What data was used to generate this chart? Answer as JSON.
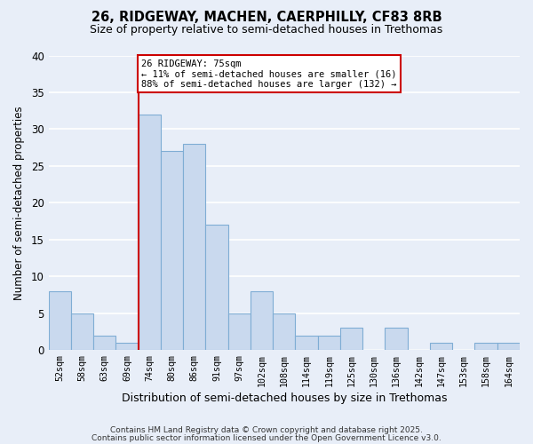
{
  "title": "26, RIDGEWAY, MACHEN, CAERPHILLY, CF83 8RB",
  "subtitle": "Size of property relative to semi-detached houses in Trethomas",
  "xlabel": "Distribution of semi-detached houses by size in Trethomas",
  "ylabel": "Number of semi-detached properties",
  "bins": [
    "52sqm",
    "58sqm",
    "63sqm",
    "69sqm",
    "74sqm",
    "80sqm",
    "86sqm",
    "91sqm",
    "97sqm",
    "102sqm",
    "108sqm",
    "114sqm",
    "119sqm",
    "125sqm",
    "130sqm",
    "136sqm",
    "142sqm",
    "147sqm",
    "153sqm",
    "158sqm",
    "164sqm"
  ],
  "values": [
    8,
    5,
    2,
    1,
    32,
    27,
    28,
    17,
    5,
    8,
    5,
    2,
    2,
    3,
    0,
    3,
    0,
    1,
    0,
    1,
    1
  ],
  "bar_color": "#c9d9ee",
  "bar_edge_color": "#7fadd4",
  "highlight_index": 4,
  "highlight_line_color": "#cc0000",
  "ylim": [
    0,
    40
  ],
  "yticks": [
    0,
    5,
    10,
    15,
    20,
    25,
    30,
    35,
    40
  ],
  "annotation_line1": "26 RIDGEWAY: 75sqm",
  "annotation_line2": "← 11% of semi-detached houses are smaller (16)",
  "annotation_line3": "88% of semi-detached houses are larger (132) →",
  "background_color": "#e8eef8",
  "grid_color": "#ffffff",
  "footer_line1": "Contains HM Land Registry data © Crown copyright and database right 2025.",
  "footer_line2": "Contains public sector information licensed under the Open Government Licence v3.0."
}
